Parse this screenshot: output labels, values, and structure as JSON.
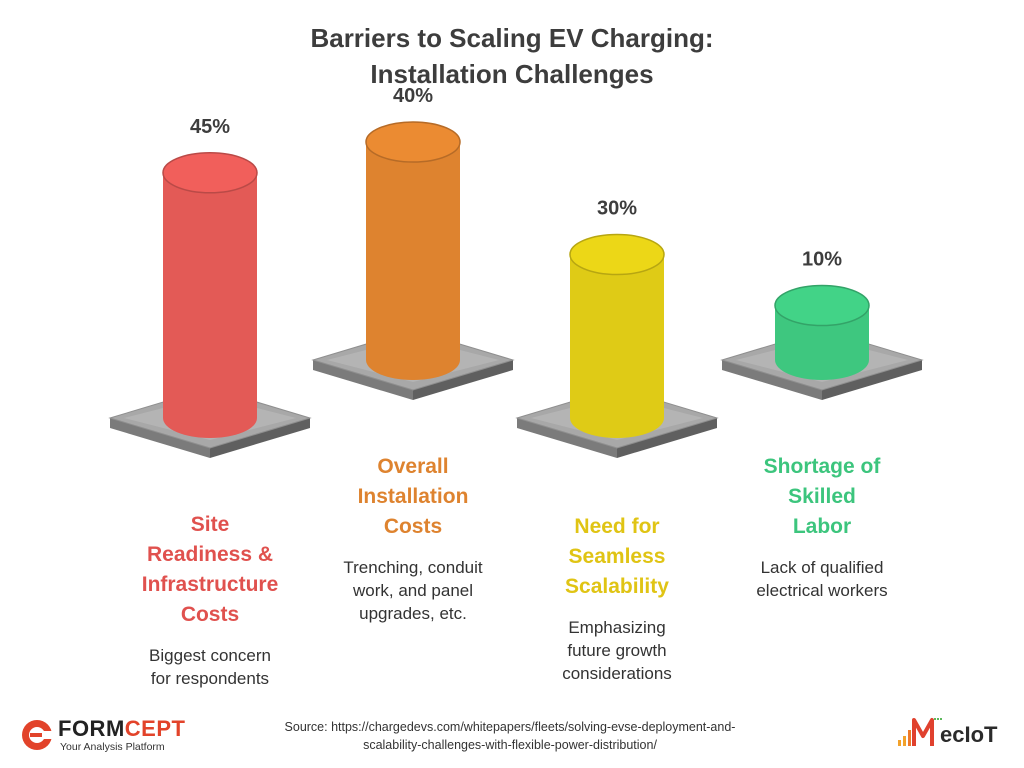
{
  "title_line1": "Barriers to Scaling EV Charging:",
  "title_line2": "Installation Challenges",
  "chart_data": {
    "type": "bar",
    "categories": [
      "Site Readiness & Infrastructure Costs",
      "Overall Installation Costs",
      "Need for Seamless Scalability",
      "Shortage of Skilled Labor"
    ],
    "values": [
      45,
      40,
      30,
      10
    ],
    "value_labels": [
      "45%",
      "40%",
      "30%",
      "10%"
    ],
    "descriptions": [
      "Biggest concern for respondents",
      "Trenching, conduit work, and panel upgrades, etc.",
      "Emphasizing future growth considerations",
      "Lack of qualified electrical workers"
    ],
    "colors": [
      "#e35a56",
      "#de832f",
      "#dfcb16",
      "#3ec77f"
    ],
    "category_colors": [
      "#e0514e",
      "#de832f",
      "#e0c414",
      "#3cc57d"
    ]
  },
  "cat_lines": [
    [
      "Site",
      "Readiness &",
      "Infrastructure",
      "Costs"
    ],
    [
      "Overall",
      "Installation",
      "Costs"
    ],
    [
      "Need for",
      "Seamless",
      "Scalability"
    ],
    [
      "Shortage of",
      "Skilled",
      "Labor"
    ]
  ],
  "desc_lines": [
    [
      "Biggest concern",
      "for respondents"
    ],
    [
      "Trenching, conduit",
      "work, and panel",
      "upgrades, etc."
    ],
    [
      "Emphasizing",
      "future growth",
      "considerations"
    ],
    [
      "Lack of qualified",
      "electrical workers"
    ]
  ],
  "footer": {
    "source_line1": "Source: https://chargedevs.com/whitepapers/fleets/solving-evse-deployment-and-",
    "source_line2": "scalability-challenges-with-flexible-power-distribution/",
    "left_brand_a": "FORM",
    "left_brand_b": "CEPT",
    "left_tagline": "Your Analysis Platform",
    "right_brand": "ecIoT",
    "left_logo_icon": "formcept-logo-icon",
    "right_logo_icon": "meciot-logo-icon"
  }
}
